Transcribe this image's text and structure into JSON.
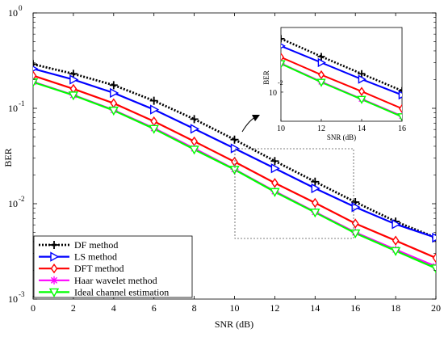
{
  "chart_data": [
    {
      "type": "line",
      "xlabel": "SNR (dB)",
      "ylabel": "BER",
      "xlim": [
        0,
        20
      ],
      "ylim": [
        0.001,
        1
      ],
      "yscale": "log",
      "x_ticks": [
        "0",
        "2",
        "4",
        "6",
        "8",
        "10",
        "12",
        "14",
        "16",
        "18",
        "20"
      ],
      "y_ticks": [
        {
          "base": "10",
          "exp": "0"
        },
        {
          "base": "10",
          "exp": "-1"
        },
        {
          "base": "10",
          "exp": "-2"
        },
        {
          "base": "10",
          "exp": "-3"
        }
      ],
      "legend_position": "bottom-left",
      "x": [
        0,
        2,
        4,
        6,
        8,
        10,
        12,
        14,
        16,
        18,
        20
      ],
      "series": [
        {
          "name": "DF method",
          "color": "#000000",
          "style": "dotted",
          "marker": "plus",
          "values": [
            0.29,
            0.23,
            0.175,
            0.12,
            0.077,
            0.047,
            0.028,
            0.017,
            0.0104,
            0.0065,
            0.0044
          ]
        },
        {
          "name": "LS method",
          "color": "#0000ff",
          "style": "solid",
          "marker": "triangle-right",
          "values": [
            0.26,
            0.2,
            0.145,
            0.097,
            0.061,
            0.038,
            0.0235,
            0.0145,
            0.0092,
            0.0061,
            0.0044
          ]
        },
        {
          "name": "DFT method",
          "color": "#ff0000",
          "style": "solid",
          "marker": "diamond",
          "values": [
            0.22,
            0.16,
            0.113,
            0.073,
            0.045,
            0.0275,
            0.0165,
            0.0102,
            0.0062,
            0.0041,
            0.0027
          ]
        },
        {
          "name": "Haar wavelet method",
          "color": "#ff00ff",
          "style": "solid",
          "marker": "star",
          "values": [
            0.19,
            0.138,
            0.096,
            0.062,
            0.038,
            0.023,
            0.0135,
            0.0082,
            0.005,
            0.0033,
            0.0022
          ]
        },
        {
          "name": "Ideal channel estimation",
          "color": "#00ff00",
          "style": "solid",
          "marker": "triangle-down",
          "values": [
            0.188,
            0.137,
            0.095,
            0.061,
            0.037,
            0.0228,
            0.0133,
            0.0081,
            0.0049,
            0.0032,
            0.0021
          ]
        }
      ]
    },
    {
      "type": "line",
      "role": "inset-zoom",
      "xlabel": "SNR (dB)",
      "ylabel": "BER",
      "xlim": [
        10,
        16
      ],
      "ylim": [
        0.0043,
        0.065
      ],
      "yscale": "log",
      "x_ticks": [
        "10",
        "12",
        "14",
        "16"
      ],
      "y_tick": {
        "base": "10",
        "exp": "-2"
      },
      "x": [
        10,
        12,
        14,
        16
      ],
      "series_ref": "main"
    }
  ]
}
